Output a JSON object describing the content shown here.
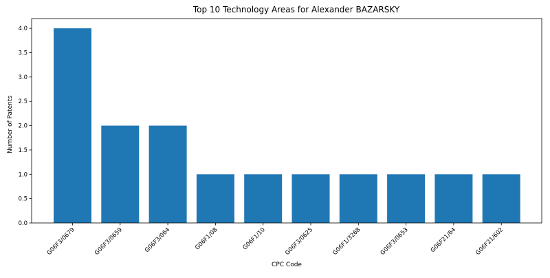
{
  "chart_data": {
    "type": "bar",
    "title": "Top 10 Technology Areas for Alexander BAZARSKY",
    "xlabel": "CPC Code",
    "ylabel": "Number of Patents",
    "categories": [
      "G06F3/0679",
      "G06F3/0659",
      "G06F3/064",
      "G06F1/08",
      "G06F1/10",
      "G06F3/0625",
      "G06F1/3268",
      "G06F3/0653",
      "G06F21/64",
      "G06F21/602"
    ],
    "values": [
      4,
      2,
      2,
      1,
      1,
      1,
      1,
      1,
      1,
      1
    ],
    "ylim": [
      0,
      4.2
    ],
    "yticks": [
      "0.0",
      "0.5",
      "1.0",
      "1.5",
      "2.0",
      "2.5",
      "3.0",
      "3.5",
      "4.0"
    ],
    "grid": false,
    "legend": "none",
    "bar_color": "#1f77b4"
  }
}
